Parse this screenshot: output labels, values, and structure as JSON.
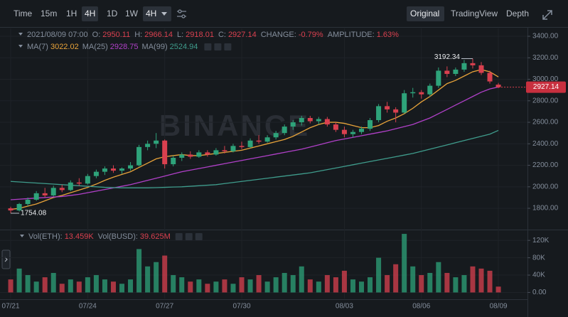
{
  "toolbar": {
    "intervals": [
      "Time",
      "15m",
      "1H",
      "4H",
      "1D",
      "1W"
    ],
    "selected_interval": 3,
    "dropdown": "4H",
    "views": [
      "Original",
      "TradingView",
      "Depth"
    ],
    "selected_view": 0
  },
  "chart_data": {
    "type": "candlestick",
    "datetime": "2021/08/09 07:00",
    "labels": {
      "open": "O:",
      "high": "H:",
      "low": "L:",
      "close": "C:",
      "change": "CHANGE:",
      "amplitude": "AMPLITUDE:"
    },
    "change": "-0.79%",
    "amplitude": "1.63%",
    "watermark": "BINANCE",
    "up_color": "#2ea37a",
    "down_color": "#d9404f",
    "x": [
      0,
      1,
      2,
      3,
      4,
      5,
      6,
      7,
      8,
      9,
      10,
      11,
      12,
      13,
      14,
      15,
      16,
      17,
      18,
      19,
      20,
      21,
      22,
      23,
      24,
      25,
      26,
      27,
      28,
      29,
      30,
      31,
      32,
      33,
      34,
      35,
      36,
      37,
      38,
      39,
      40,
      41,
      42,
      43,
      44,
      45,
      46,
      47,
      48,
      49,
      50,
      51,
      52,
      53,
      54,
      55,
      56,
      57
    ],
    "xlim": [
      -1.25,
      60.4
    ],
    "xticks": [
      {
        "value": 0,
        "label": "07/21"
      },
      {
        "value": 9,
        "label": "07/24"
      },
      {
        "value": 18,
        "label": "07/27"
      },
      {
        "value": 27,
        "label": "07/30"
      },
      {
        "value": 39,
        "label": "08/03"
      },
      {
        "value": 48,
        "label": "08/06"
      },
      {
        "value": 57,
        "label": "08/09"
      }
    ],
    "open": [
      1800,
      1780,
      1840,
      1880,
      1940,
      1920,
      1990,
      1970,
      2040,
      2030,
      2100,
      2140,
      2170,
      2150,
      2170,
      2200,
      2370,
      2400,
      2430,
      2210,
      2270,
      2300,
      2280,
      2320,
      2300,
      2340,
      2330,
      2380,
      2370,
      2430,
      2420,
      2460,
      2500,
      2560,
      2600,
      2640,
      2610,
      2630,
      2580,
      2530,
      2490,
      2510,
      2540,
      2620,
      2750,
      2720,
      2690,
      2870,
      2880,
      2860,
      2940,
      3080,
      3050,
      3090,
      3150,
      3130,
      3060,
      2950.11
    ],
    "high": [
      1815,
      1850,
      1900,
      1960,
      1990,
      2010,
      2020,
      2060,
      2080,
      2120,
      2160,
      2190,
      2200,
      2180,
      2230,
      2390,
      2430,
      2500,
      2440,
      2290,
      2320,
      2330,
      2340,
      2340,
      2360,
      2380,
      2400,
      2420,
      2450,
      2480,
      2480,
      2520,
      2580,
      2620,
      2660,
      2660,
      2650,
      2650,
      2600,
      2560,
      2530,
      2560,
      2640,
      2770,
      2790,
      2740,
      2900,
      2920,
      2900,
      2960,
      3110,
      3120,
      3110,
      3180,
      3192.34,
      3160,
      3080,
      2966.14
    ],
    "low": [
      1754.08,
      1770,
      1820,
      1870,
      1900,
      1910,
      1950,
      1960,
      2010,
      2020,
      2080,
      2110,
      2130,
      2120,
      2150,
      2190,
      2340,
      2360,
      2170,
      2190,
      2240,
      2260,
      2270,
      2280,
      2290,
      2310,
      2320,
      2350,
      2360,
      2400,
      2410,
      2440,
      2480,
      2530,
      2570,
      2590,
      2580,
      2560,
      2510,
      2460,
      2460,
      2490,
      2520,
      2600,
      2690,
      2600,
      2680,
      2830,
      2820,
      2840,
      2920,
      3020,
      3030,
      3070,
      3100,
      3040,
      2960,
      2918.01
    ],
    "close": [
      1780,
      1840,
      1880,
      1940,
      1920,
      1990,
      1970,
      2040,
      2030,
      2100,
      2140,
      2170,
      2150,
      2170,
      2200,
      2370,
      2400,
      2430,
      2210,
      2270,
      2300,
      2280,
      2320,
      2300,
      2340,
      2330,
      2380,
      2370,
      2430,
      2420,
      2460,
      2500,
      2560,
      2600,
      2640,
      2610,
      2630,
      2580,
      2530,
      2490,
      2510,
      2540,
      2620,
      2750,
      2720,
      2690,
      2870,
      2880,
      2860,
      2940,
      3080,
      3050,
      3090,
      3150,
      3130,
      3060,
      2980,
      2927.14
    ],
    "series": [
      {
        "name": "MA(7)",
        "color": "#e8a33a",
        "values": [
          1790,
          1800,
          1820,
          1840,
          1870,
          1900,
          1920,
          1945,
          1970,
          1995,
          2025,
          2060,
          2090,
          2115,
          2140,
          2180,
          2220,
          2260,
          2280,
          2290,
          2300,
          2290,
          2290,
          2300,
          2310,
          2320,
          2330,
          2340,
          2360,
          2380,
          2400,
          2420,
          2440,
          2470,
          2510,
          2550,
          2580,
          2600,
          2600,
          2590,
          2570,
          2550,
          2550,
          2570,
          2610,
          2640,
          2680,
          2730,
          2790,
          2840,
          2900,
          2960,
          2990,
          3030,
          3070,
          3090,
          3070,
          3022.02
        ]
      },
      {
        "name": "MA(25)",
        "color": "#b040c8",
        "values": [
          1880,
          1885,
          1890,
          1895,
          1900,
          1905,
          1910,
          1920,
          1930,
          1945,
          1960,
          1975,
          1990,
          2005,
          2020,
          2040,
          2060,
          2080,
          2100,
          2120,
          2140,
          2155,
          2170,
          2185,
          2200,
          2215,
          2230,
          2245,
          2260,
          2275,
          2290,
          2305,
          2320,
          2335,
          2350,
          2370,
          2390,
          2410,
          2430,
          2445,
          2460,
          2475,
          2490,
          2505,
          2520,
          2540,
          2560,
          2580,
          2610,
          2640,
          2680,
          2720,
          2760,
          2800,
          2840,
          2880,
          2910,
          2928.75
        ]
      },
      {
        "name": "MA(99)",
        "color": "#3f9c8c",
        "values": [
          2050,
          2045,
          2040,
          2035,
          2030,
          2025,
          2020,
          2015,
          2010,
          2005,
          2000,
          1995,
          1992,
          1990,
          1990,
          1990,
          1990,
          1992,
          1995,
          1998,
          2000,
          2005,
          2010,
          2015,
          2020,
          2030,
          2040,
          2050,
          2060,
          2070,
          2080,
          2090,
          2100,
          2110,
          2120,
          2130,
          2145,
          2160,
          2175,
          2190,
          2205,
          2220,
          2235,
          2250,
          2265,
          2280,
          2295,
          2310,
          2330,
          2350,
          2370,
          2390,
          2410,
          2430,
          2450,
          2470,
          2490,
          2524.94
        ]
      }
    ],
    "ylim": [
      1622,
      3473
    ],
    "yticks": [
      {
        "value": 1800,
        "label": "1800.00"
      },
      {
        "value": 2000,
        "label": "2000.00"
      },
      {
        "value": 2200,
        "label": "2200.00"
      },
      {
        "value": 2400,
        "label": "2400.00"
      },
      {
        "value": 2600,
        "label": "2600.00"
      },
      {
        "value": 2800,
        "label": "2800.00"
      },
      {
        "value": 3000,
        "label": "3000.00"
      },
      {
        "value": 3200,
        "label": "3200.00"
      },
      {
        "value": 3400,
        "label": "3400.00"
      }
    ],
    "grid": true,
    "volume": {
      "label_eth": "Vol(ETH):",
      "eth": "13.459K",
      "label_busd": "Vol(BUSD):",
      "busd": "39.625M",
      "values": [
        30000,
        55000,
        40000,
        25000,
        35000,
        45000,
        20000,
        30000,
        25000,
        35000,
        40000,
        30000,
        25000,
        20000,
        30000,
        100000,
        60000,
        70000,
        85000,
        40000,
        35000,
        25000,
        30000,
        20000,
        25000,
        30000,
        20000,
        35000,
        30000,
        40000,
        25000,
        35000,
        45000,
        40000,
        60000,
        30000,
        25000,
        40000,
        35000,
        50000,
        30000,
        25000,
        35000,
        80000,
        40000,
        65000,
        135000,
        60000,
        40000,
        45000,
        70000,
        45000,
        35000,
        40000,
        60000,
        55000,
        50000,
        13459
      ],
      "ylim": [
        -14000,
        140000
      ],
      "yticks": [
        {
          "value": 0,
          "label": "0.00"
        },
        {
          "value": 40000,
          "label": "40K"
        },
        {
          "value": 80000,
          "label": "80K"
        },
        {
          "value": 120000,
          "label": "120K"
        }
      ]
    }
  }
}
